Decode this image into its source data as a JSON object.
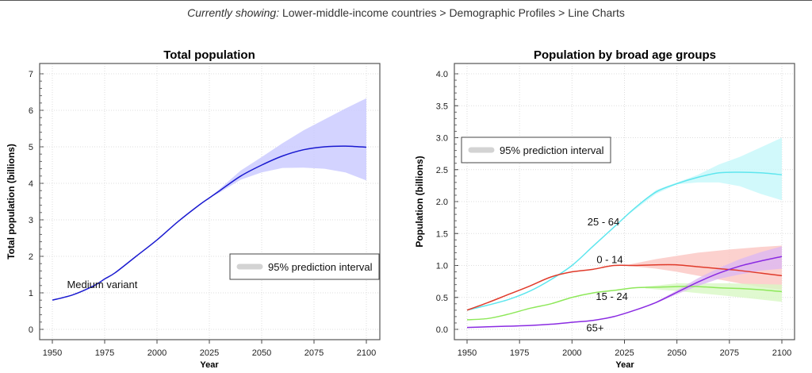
{
  "header": {
    "prefix": "Currently showing:",
    "path": "Lower-middle-income countries > Demographic Profiles > Line Charts"
  },
  "chart_data": [
    {
      "type": "line",
      "title": "Total population",
      "xlabel": "Year",
      "ylabel": "Total population (billions)",
      "xlim": [
        1945,
        2108
      ],
      "ylim": [
        -0.25,
        7.3
      ],
      "xticks": [
        1950,
        1975,
        2000,
        2025,
        2050,
        2075,
        2100
      ],
      "yticks": [
        0,
        1,
        2,
        3,
        4,
        5,
        6,
        7
      ],
      "grid": true,
      "legend": {
        "label": "95% prediction interval",
        "placement": "lower-right"
      },
      "annotations": [
        "Medium variant"
      ],
      "series": [
        {
          "label": "Medium variant",
          "color": "#1a1ad0",
          "band_color": "#c8c8ff",
          "x": [
            1950,
            1960,
            1970,
            1975,
            1980,
            1990,
            2000,
            2010,
            2020,
            2025,
            2030,
            2040,
            2050,
            2060,
            2070,
            2080,
            2090,
            2100
          ],
          "y": [
            0.8,
            0.95,
            1.2,
            1.38,
            1.55,
            2.0,
            2.45,
            2.95,
            3.4,
            3.6,
            3.8,
            4.2,
            4.5,
            4.75,
            4.92,
            5.0,
            5.02,
            4.99
          ],
          "interval": {
            "x": [
              2025,
              2030,
              2040,
              2050,
              2060,
              2070,
              2080,
              2090,
              2100
            ],
            "lower": [
              3.6,
              3.75,
              4.1,
              4.3,
              4.42,
              4.43,
              4.4,
              4.3,
              4.08
            ],
            "upper": [
              3.6,
              3.85,
              4.35,
              4.72,
              5.1,
              5.45,
              5.75,
              6.05,
              6.33
            ]
          }
        }
      ]
    },
    {
      "type": "line",
      "title": "Population by broad age groups",
      "xlabel": "Year",
      "ylabel": "Population (billions)",
      "xlim": [
        1944,
        2105
      ],
      "ylim": [
        -0.15,
        4.15
      ],
      "xticks": [
        1950,
        1975,
        2000,
        2025,
        2050,
        2075,
        2100
      ],
      "yticks": [
        "0.0",
        "0.5",
        "1.0",
        "1.5",
        "2.0",
        "2.5",
        "3.0",
        "3.5",
        "4.0"
      ],
      "grid": true,
      "legend": {
        "label": "95% prediction interval",
        "placement": "upper-left"
      },
      "series": [
        {
          "label": "25 - 64",
          "color": "#5ee6ee",
          "band_color": "#c6f8fa",
          "x": [
            1950,
            1960,
            1970,
            1980,
            1990,
            2000,
            2010,
            2020,
            2030,
            2040,
            2050,
            2060,
            2070,
            2080,
            2090,
            2100
          ],
          "y": [
            0.3,
            0.38,
            0.47,
            0.6,
            0.78,
            1.0,
            1.3,
            1.6,
            1.9,
            2.15,
            2.28,
            2.38,
            2.45,
            2.46,
            2.45,
            2.42
          ],
          "interval": {
            "x": [
              2025,
              2040,
              2050,
              2060,
              2070,
              2080,
              2090,
              2100
            ],
            "lower": [
              1.75,
              2.12,
              2.27,
              2.3,
              2.3,
              2.24,
              2.12,
              2.02
            ],
            "upper": [
              1.75,
              2.18,
              2.3,
              2.42,
              2.58,
              2.7,
              2.85,
              3.0
            ]
          }
        },
        {
          "label": "0 - 14",
          "color": "#e03a2a",
          "band_color": "#fbc6c2",
          "x": [
            1950,
            1960,
            1970,
            1980,
            1990,
            2000,
            2010,
            2020,
            2030,
            2040,
            2050,
            2060,
            2070,
            2080,
            2090,
            2100
          ],
          "y": [
            0.3,
            0.42,
            0.55,
            0.68,
            0.82,
            0.9,
            0.94,
            1.0,
            1.0,
            1.01,
            1.01,
            0.98,
            0.95,
            0.92,
            0.88,
            0.84
          ],
          "interval": {
            "x": [
              2025,
              2040,
              2050,
              2060,
              2075,
              2090,
              2100
            ],
            "lower": [
              1.0,
              0.95,
              0.9,
              0.84,
              0.75,
              0.66,
              0.62
            ],
            "upper": [
              1.0,
              1.1,
              1.15,
              1.2,
              1.25,
              1.29,
              1.31
            ]
          }
        },
        {
          "label": "15 - 24",
          "color": "#8ee85a",
          "band_color": "#d8f8c4",
          "x": [
            1950,
            1960,
            1970,
            1980,
            1990,
            2000,
            2010,
            2020,
            2030,
            2040,
            2050,
            2060,
            2070,
            2080,
            2090,
            2100
          ],
          "y": [
            0.15,
            0.17,
            0.24,
            0.33,
            0.4,
            0.5,
            0.57,
            0.61,
            0.65,
            0.66,
            0.67,
            0.67,
            0.65,
            0.64,
            0.62,
            0.59
          ],
          "interval": {
            "x": [
              2035,
              2050,
              2075,
              2100
            ],
            "lower": [
              0.64,
              0.6,
              0.52,
              0.43
            ],
            "upper": [
              0.67,
              0.72,
              0.72,
              0.7
            ]
          }
        },
        {
          "label": "65+",
          "color": "#8a2be2",
          "band_color": "#dcb8f2",
          "x": [
            1950,
            1960,
            1970,
            1980,
            1990,
            2000,
            2010,
            2020,
            2030,
            2040,
            2050,
            2060,
            2070,
            2080,
            2090,
            2100
          ],
          "y": [
            0.03,
            0.04,
            0.05,
            0.06,
            0.08,
            0.11,
            0.14,
            0.2,
            0.3,
            0.42,
            0.58,
            0.74,
            0.88,
            0.99,
            1.07,
            1.14
          ],
          "interval": {
            "x": [
              2040,
              2050,
              2060,
              2070,
              2080,
              2090,
              2100
            ],
            "lower": [
              0.41,
              0.55,
              0.68,
              0.79,
              0.86,
              0.92,
              0.95
            ],
            "upper": [
              0.43,
              0.61,
              0.8,
              0.96,
              1.1,
              1.21,
              1.3
            ]
          }
        }
      ]
    }
  ]
}
